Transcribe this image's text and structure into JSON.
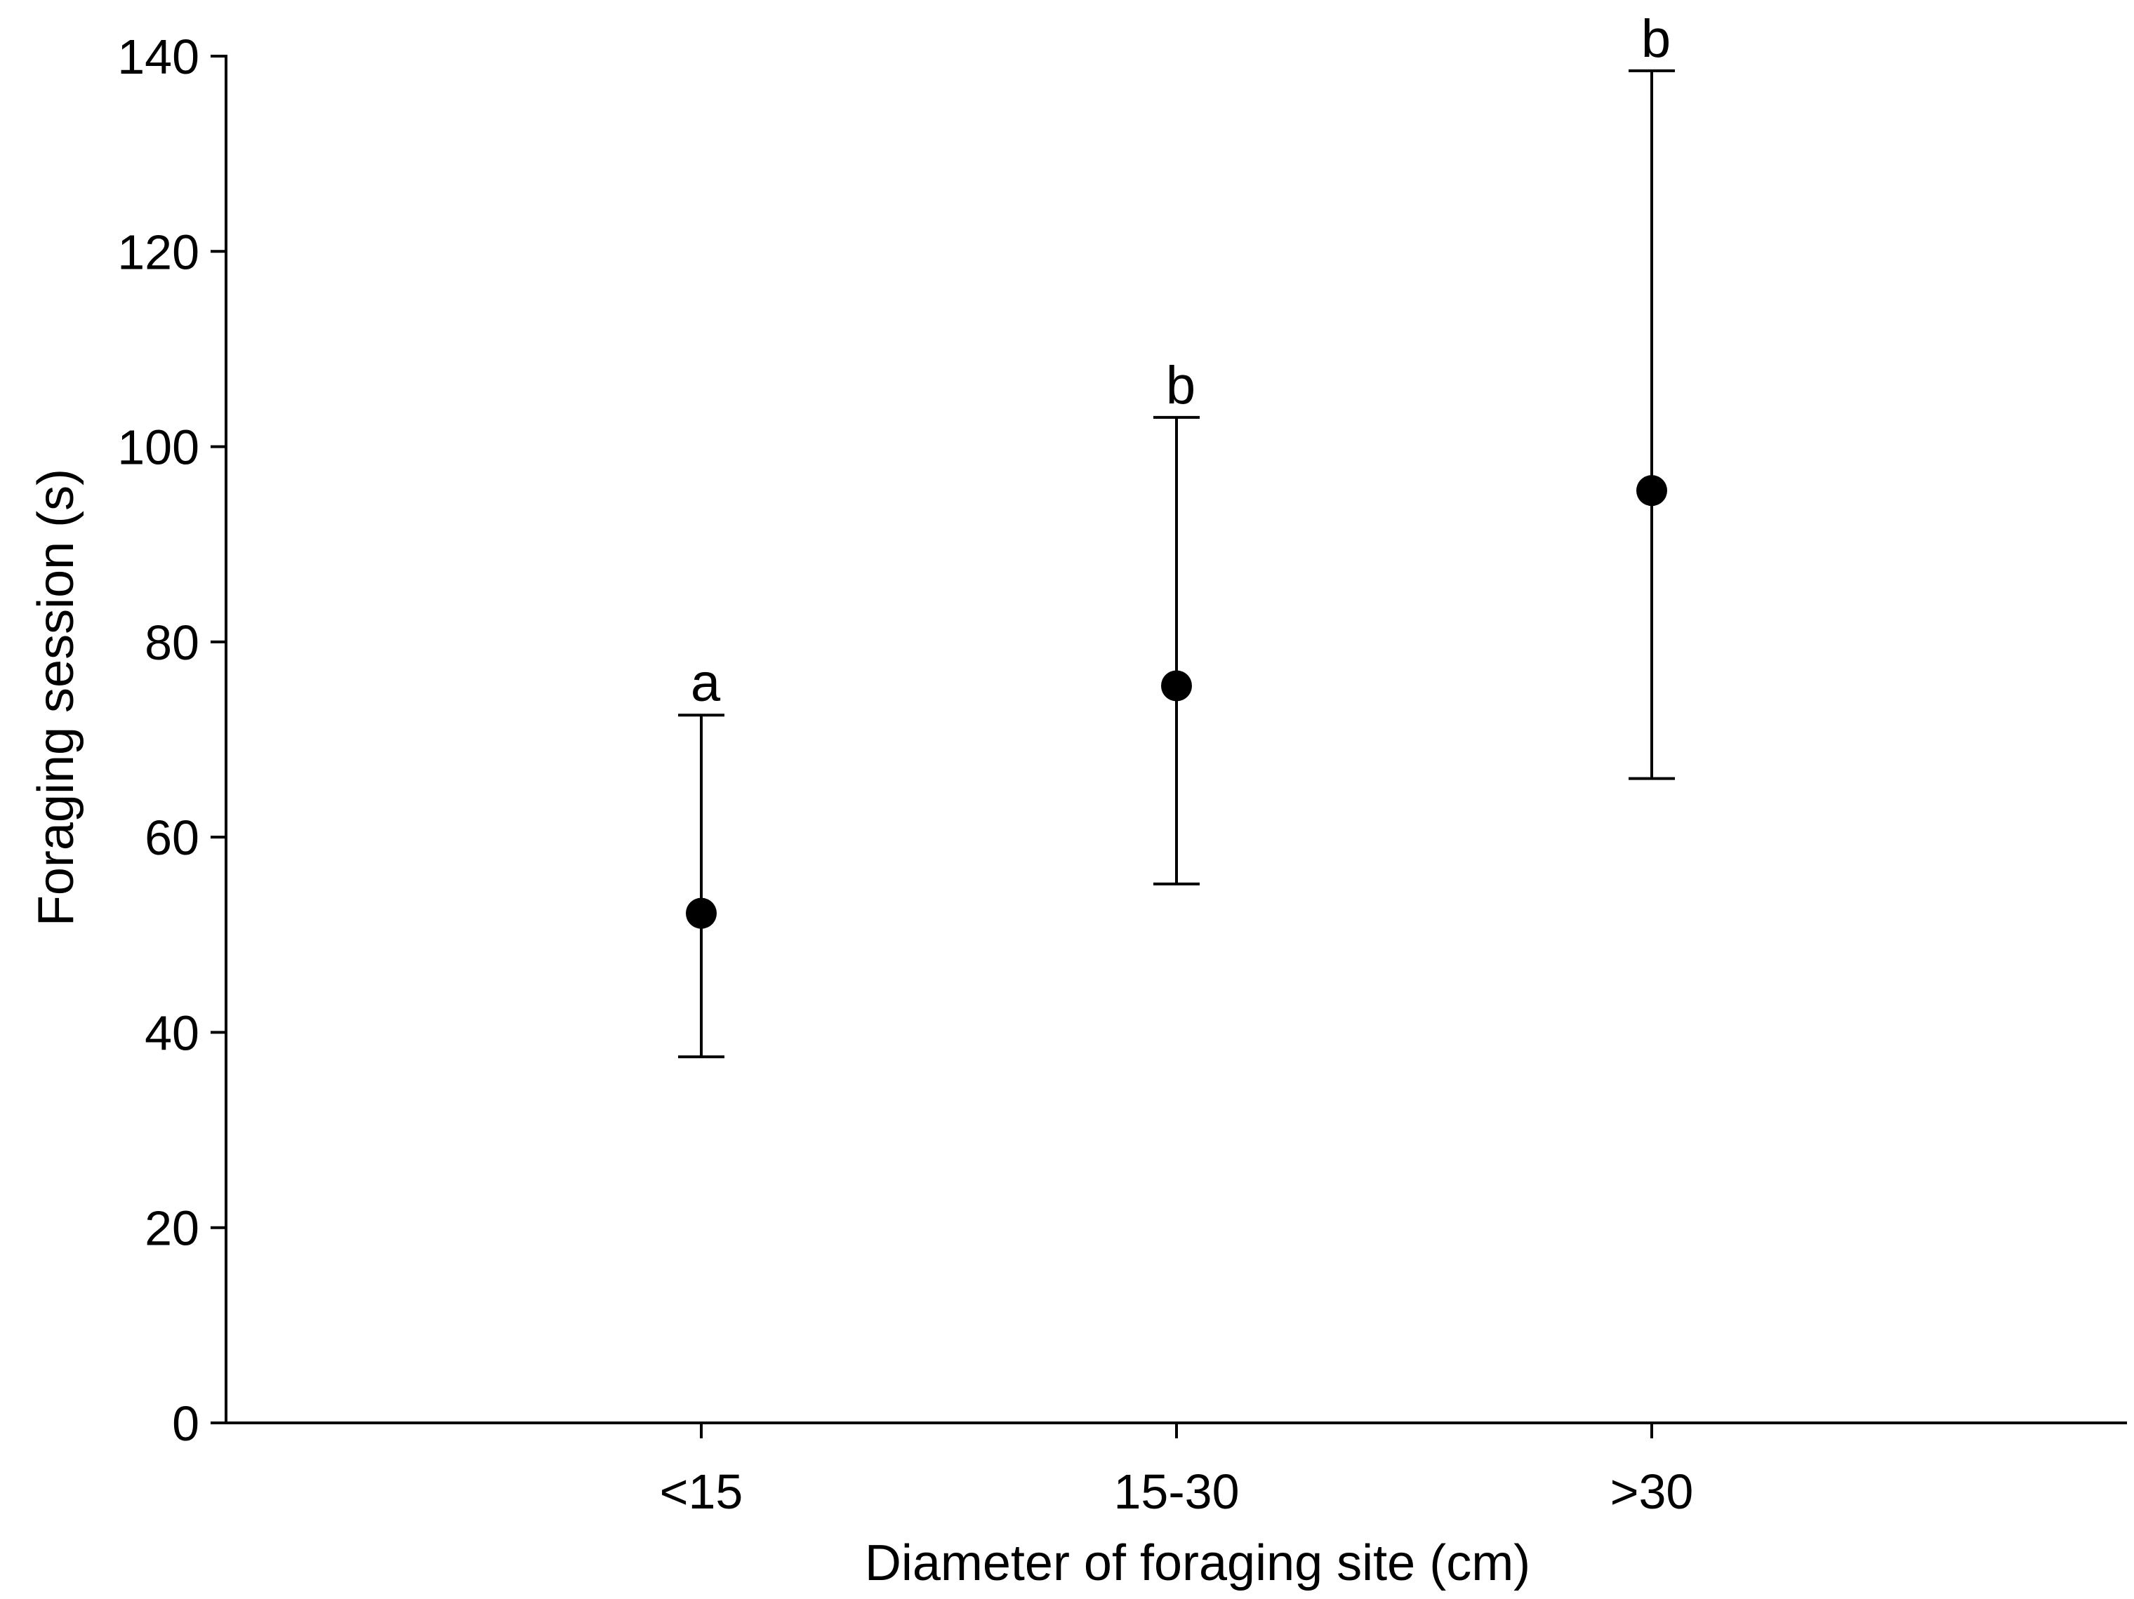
{
  "chart_data": {
    "type": "scatter",
    "title": "",
    "xlabel": "Diameter of foraging site (cm)",
    "ylabel": "Foraging session (s)",
    "categories": [
      "<15",
      "15-30",
      ">30"
    ],
    "series": [
      {
        "mean": [
          52.2,
          75.5,
          95.5
        ],
        "error_upper": [
          72.5,
          103.0,
          138.5
        ],
        "error_lower": [
          37.5,
          55.2,
          66.0
        ],
        "group_letters": [
          "a",
          "b",
          "b"
        ]
      }
    ],
    "ylim": [
      0,
      140
    ],
    "yticks": [
      0,
      20,
      40,
      60,
      80,
      100,
      120,
      140
    ],
    "grid": false,
    "legend": "none",
    "colors": {
      "marker": "#000000",
      "axis": "#000000",
      "background": "#ffffff"
    }
  }
}
